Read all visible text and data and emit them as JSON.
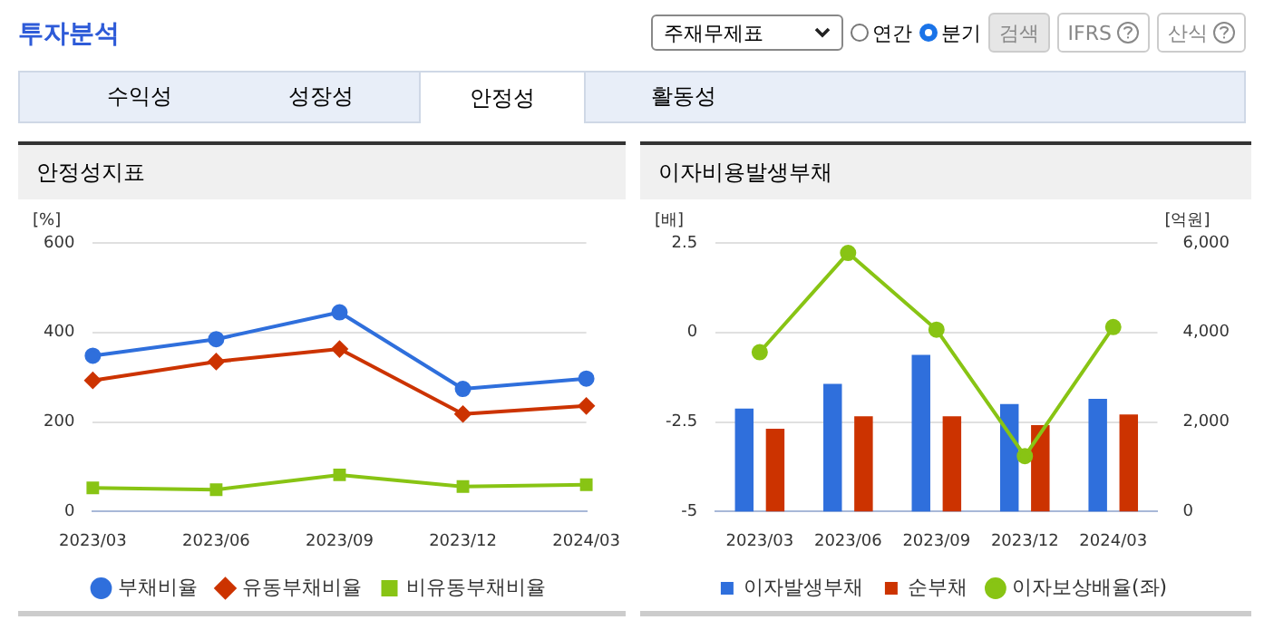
{
  "chart_data": [
    {
      "type": "line",
      "title": "안정성지표",
      "ylabel": "[%]",
      "categories": [
        "2023/03",
        "2023/06",
        "2023/09",
        "2023/12",
        "2024/03"
      ],
      "series": [
        {
          "name": "부채비율",
          "color": "#2f6fdc",
          "marker": "circle",
          "values": [
            348,
            385,
            445,
            274,
            297
          ]
        },
        {
          "name": "유동부채비율",
          "color": "#cc3300",
          "marker": "diamond",
          "values": [
            293,
            335,
            363,
            218,
            236
          ]
        },
        {
          "name": "비유동부채비율",
          "color": "#88c414",
          "marker": "square",
          "values": [
            53,
            49,
            82,
            56,
            60
          ]
        }
      ],
      "ylim": [
        0,
        600
      ],
      "yticks": [
        0,
        200,
        400,
        600
      ],
      "grid": "y",
      "legend": "bottom",
      "annotations": [
        "투자분석",
        "주재무제표",
        "연간",
        "분기",
        "검색",
        "IFRS",
        "산식",
        "수익성",
        "성장성",
        "안정성",
        "활동성"
      ]
    },
    {
      "type": "bar",
      "title": "이자비용발생부채",
      "ylabel": "[배]",
      "y2label": "[억원]",
      "categories": [
        "2023/03",
        "2023/06",
        "2023/09",
        "2023/12",
        "2024/03"
      ],
      "series": [
        {
          "name": "이자발생부채",
          "color": "#2f6fdc",
          "axis": "y2",
          "values": [
            2300,
            2850,
            3500,
            2400,
            2520
          ]
        },
        {
          "name": "순부채",
          "color": "#cc3300",
          "axis": "y2",
          "values": [
            1850,
            2130,
            2130,
            1930,
            2170
          ]
        },
        {
          "name": "이자보상배율(좌)",
          "type": "line",
          "color": "#88c414",
          "marker": "circle",
          "values": [
            -0.55,
            2.22,
            0.08,
            -3.45,
            0.15
          ]
        }
      ],
      "ylim": [
        -5,
        2.5
      ],
      "yticks": [
        -5,
        -2.5,
        0,
        2.5
      ],
      "y2lim": [
        0,
        6000
      ],
      "y2ticks": [
        {
          "value": 0,
          "label": "0"
        },
        {
          "value": 2000,
          "label": "2,000"
        },
        {
          "value": 4000,
          "label": "4,000"
        },
        {
          "value": 6000,
          "label": "6,000"
        }
      ],
      "grid": "y",
      "legend": "bottom"
    }
  ]
}
